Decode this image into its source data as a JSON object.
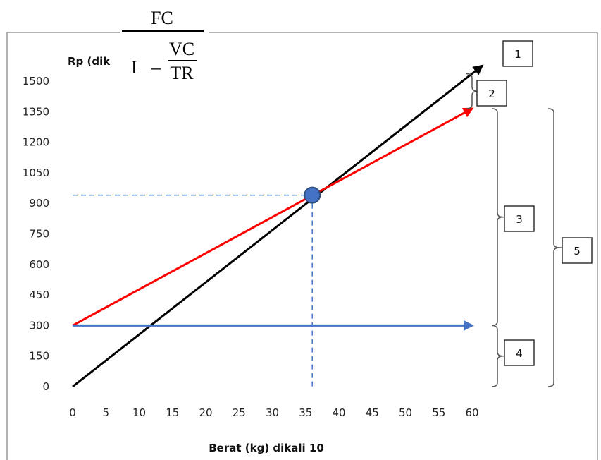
{
  "formula": {
    "numerator": "FC",
    "one": "I",
    "minus": "–",
    "inner_numerator": "VC",
    "inner_denominator": "TR"
  },
  "chart_data": {
    "type": "line",
    "ylabel": "Rp (dik",
    "xlabel": "Berat (kg) dikali 10",
    "xlim": [
      0,
      60
    ],
    "ylim": [
      0,
      1500
    ],
    "x_ticks": [
      0,
      5,
      10,
      15,
      20,
      25,
      30,
      35,
      40,
      45,
      50,
      55,
      60
    ],
    "y_ticks": [
      0,
      150,
      300,
      450,
      600,
      750,
      900,
      1050,
      1200,
      1350,
      1500
    ],
    "grid": false,
    "series": [
      {
        "color": "#000000",
        "points": [
          [
            0,
            0
          ],
          [
            61.5,
            1575
          ]
        ]
      },
      {
        "color": "#ff0000",
        "points": [
          [
            0,
            300
          ],
          [
            60,
            1365
          ]
        ]
      },
      {
        "color": "#4472c4",
        "points": [
          [
            0,
            300
          ],
          [
            60,
            300
          ]
        ]
      }
    ],
    "break_even_point": {
      "x": 36,
      "y": 940,
      "color": "#4472c4"
    },
    "callouts": [
      "1",
      "2",
      "3",
      "4",
      "5"
    ]
  }
}
